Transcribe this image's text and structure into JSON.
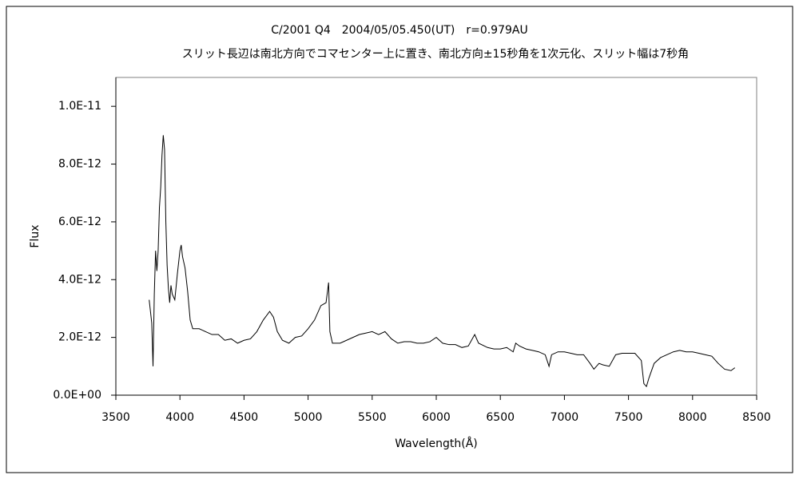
{
  "chart_data": {
    "type": "line",
    "title": "C/2001 Q4　2004/05/05.450(UT)　r=0.979AU",
    "subtitle": "スリット長辺は南北方向でコマセンター上に置き、南北方向±15秒角を1次元化、スリット幅は7秒角",
    "x_label": "Wavelength(Å)",
    "y_label": "Flux",
    "color": "#000000",
    "grid": false,
    "xlim": [
      3500,
      8500
    ],
    "xticks": [
      3500,
      4000,
      4500,
      5000,
      5500,
      6000,
      6500,
      7000,
      7500,
      8000,
      8500
    ],
    "ylim": [
      0,
      1.1e-11
    ],
    "yticks": [
      {
        "value": 0,
        "label": "0.0E+00"
      },
      {
        "value": 2e-12,
        "label": "2.0E-12"
      },
      {
        "value": 4e-12,
        "label": "4.0E-12"
      },
      {
        "value": 6e-12,
        "label": "6.0E-12"
      },
      {
        "value": 8e-12,
        "label": "8.0E-12"
      },
      {
        "value": 1e-11,
        "label": "1.0E-11"
      }
    ],
    "x": [
      3760,
      3780,
      3790,
      3800,
      3810,
      3820,
      3830,
      3840,
      3850,
      3860,
      3870,
      3880,
      3890,
      3900,
      3910,
      3920,
      3930,
      3940,
      3960,
      3980,
      4000,
      4010,
      4020,
      4040,
      4060,
      4080,
      4100,
      4150,
      4200,
      4250,
      4300,
      4350,
      4400,
      4450,
      4500,
      4550,
      4600,
      4650,
      4700,
      4730,
      4760,
      4800,
      4850,
      4900,
      4950,
      5000,
      5050,
      5100,
      5140,
      5160,
      5170,
      5190,
      5250,
      5300,
      5350,
      5400,
      5450,
      5500,
      5550,
      5600,
      5650,
      5700,
      5750,
      5800,
      5850,
      5900,
      5950,
      6000,
      6050,
      6100,
      6150,
      6200,
      6250,
      6300,
      6330,
      6400,
      6450,
      6500,
      6550,
      6600,
      6620,
      6650,
      6700,
      6750,
      6800,
      6850,
      6880,
      6900,
      6950,
      7000,
      7050,
      7100,
      7150,
      7200,
      7230,
      7270,
      7300,
      7350,
      7400,
      7450,
      7500,
      7550,
      7600,
      7620,
      7640,
      7660,
      7700,
      7750,
      7800,
      7850,
      7900,
      7950,
      8000,
      8050,
      8100,
      8150,
      8200,
      8250,
      8300,
      8330
    ],
    "values": [
      3.3e-12,
      2.5e-12,
      1e-12,
      3.5e-12,
      5e-12,
      4.3e-12,
      5e-12,
      6.5e-12,
      7.2e-12,
      8.3e-12,
      9e-12,
      8.5e-12,
      6e-12,
      4.5e-12,
      3.7e-12,
      3.2e-12,
      3.8e-12,
      3.5e-12,
      3.3e-12,
      4.2e-12,
      5e-12,
      5.2e-12,
      4.8e-12,
      4.4e-12,
      3.6e-12,
      2.6e-12,
      2.3e-12,
      2.3e-12,
      2.2e-12,
      2.1e-12,
      2.1e-12,
      1.9e-12,
      1.95e-12,
      1.8e-12,
      1.9e-12,
      1.95e-12,
      2.2e-12,
      2.6e-12,
      2.9e-12,
      2.7e-12,
      2.2e-12,
      1.9e-12,
      1.8e-12,
      2e-12,
      2.05e-12,
      2.3e-12,
      2.6e-12,
      3.1e-12,
      3.2e-12,
      3.9e-12,
      2.2e-12,
      1.8e-12,
      1.8e-12,
      1.9e-12,
      2e-12,
      2.1e-12,
      2.15e-12,
      2.2e-12,
      2.1e-12,
      2.2e-12,
      1.95e-12,
      1.8e-12,
      1.85e-12,
      1.85e-12,
      1.8e-12,
      1.8e-12,
      1.85e-12,
      2e-12,
      1.8e-12,
      1.75e-12,
      1.75e-12,
      1.65e-12,
      1.7e-12,
      2.1e-12,
      1.8e-12,
      1.65e-12,
      1.6e-12,
      1.6e-12,
      1.65e-12,
      1.5e-12,
      1.8e-12,
      1.7e-12,
      1.6e-12,
      1.55e-12,
      1.5e-12,
      1.4e-12,
      1e-12,
      1.4e-12,
      1.5e-12,
      1.5e-12,
      1.45e-12,
      1.4e-12,
      1.4e-12,
      1.1e-12,
      9e-13,
      1.1e-12,
      1.05e-12,
      1e-12,
      1.4e-12,
      1.45e-12,
      1.45e-12,
      1.45e-12,
      1.2e-12,
      4e-13,
      3e-13,
      6e-13,
      1.1e-12,
      1.3e-12,
      1.4e-12,
      1.5e-12,
      1.55e-12,
      1.5e-12,
      1.5e-12,
      1.45e-12,
      1.4e-12,
      1.35e-12,
      1.1e-12,
      9e-13,
      8.5e-13,
      9.5e-13
    ]
  }
}
